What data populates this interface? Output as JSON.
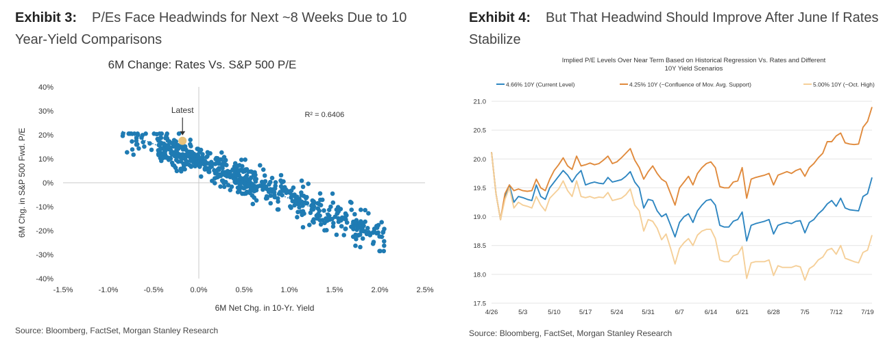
{
  "exhibit3": {
    "label": "Exhibit 3:",
    "title": "P/Es Face Headwinds for Next ~8 Weeks Due to 10 Year-Yield Comparisons",
    "source": "Source: Bloomberg, FactSet, Morgan Stanley Research"
  },
  "exhibit4": {
    "label": "Exhibit 4:",
    "title": "But That Headwind Should Improve After June If Rates Stabilize",
    "source": "Source: Bloomberg, FactSet, Morgan Stanley Research"
  },
  "chart_data": [
    {
      "type": "scatter",
      "title": "6M Change: Rates Vs. S&P 500 P/E",
      "xlabel": "6M Net Chg. in 10-Yr. Yield",
      "ylabel": "6M Chg. in S&P 500 Fwd. P/E",
      "xlim": [
        -1.5,
        2.5
      ],
      "ylim": [
        -40,
        40
      ],
      "x_ticks": [
        "-1.5%",
        "-1.0%",
        "-0.5%",
        "0.0%",
        "0.5%",
        "1.0%",
        "1.5%",
        "2.0%",
        "2.5%"
      ],
      "y_ticks": [
        "40%",
        "30%",
        "20%",
        "10%",
        "0%",
        "-10%",
        "-20%",
        "-30%",
        "-40%"
      ],
      "annotation": "Latest",
      "r_squared": "R² = 0.6406",
      "latest_point": {
        "x": -0.18,
        "y": 17.5
      },
      "trendline": {
        "x": [
          -0.85,
          2.05
        ],
        "y": [
          21.5,
          -22.5
        ]
      },
      "point_color": "#1f7bb3",
      "latest_color": "#e8c27a",
      "point_count": 620,
      "grid": false
    },
    {
      "type": "line",
      "title": "Implied P/E Levels Over Near Term Based on Historical Regression Vs. Rates and Different 10Y Yield Scenarios",
      "x_ticks": [
        "4/26",
        "5/3",
        "5/10",
        "5/17",
        "5/24",
        "5/31",
        "6/7",
        "6/14",
        "6/21",
        "6/28",
        "7/5",
        "7/12",
        "7/19"
      ],
      "ylim": [
        17.5,
        21.0
      ],
      "y_ticks": [
        "21.0",
        "20.5",
        "20.0",
        "19.5",
        "19.0",
        "18.5",
        "18.0",
        "17.5"
      ],
      "legend_position": "top",
      "grid": true,
      "series": [
        {
          "name": "4.66% 10Y (Current Level)",
          "color": "#2e86c1",
          "values": [
            20.12,
            19.4,
            18.95,
            19.35,
            19.55,
            19.25,
            19.35,
            19.33,
            19.3,
            19.28,
            19.55,
            19.35,
            19.3,
            19.5,
            19.6,
            19.7,
            19.8,
            19.72,
            19.6,
            19.72,
            19.8,
            19.55,
            19.58,
            19.6,
            19.58,
            19.57,
            19.68,
            19.6,
            19.62,
            19.64,
            19.7,
            19.78,
            19.6,
            19.5,
            19.15,
            19.3,
            19.28,
            19.1,
            19.0,
            19.05,
            18.85,
            18.65,
            18.9,
            19.0,
            19.05,
            18.9,
            19.1,
            19.2,
            19.28,
            19.3,
            19.2,
            18.85,
            18.82,
            18.82,
            18.92,
            18.95,
            19.08,
            18.58,
            18.85,
            18.88,
            18.9,
            18.92,
            18.95,
            18.7,
            18.85,
            18.88,
            18.9,
            18.88,
            18.92,
            18.93,
            18.72,
            18.9,
            18.95,
            19.05,
            19.12,
            19.22,
            19.28,
            19.18,
            19.32,
            19.15,
            19.12,
            19.11,
            19.1,
            19.35,
            19.4,
            19.68
          ]
        },
        {
          "name": "4.25% 10Y (~Confluence of Mov. Avg. Support)",
          "color": "#e08a3c",
          "values": [
            20.12,
            19.4,
            18.95,
            19.4,
            19.55,
            19.45,
            19.48,
            19.45,
            19.44,
            19.45,
            19.65,
            19.5,
            19.45,
            19.65,
            19.8,
            19.9,
            20.02,
            19.88,
            19.82,
            20.05,
            19.88,
            19.9,
            19.93,
            19.9,
            19.92,
            19.98,
            20.05,
            19.92,
            19.95,
            20.02,
            20.1,
            20.18,
            19.98,
            19.85,
            19.65,
            19.78,
            19.88,
            19.75,
            19.65,
            19.6,
            19.4,
            19.2,
            19.5,
            19.6,
            19.7,
            19.55,
            19.75,
            19.85,
            19.92,
            19.95,
            19.85,
            19.52,
            19.5,
            19.5,
            19.6,
            19.62,
            19.85,
            19.32,
            19.65,
            19.68,
            19.7,
            19.72,
            19.75,
            19.55,
            19.72,
            19.75,
            19.78,
            19.75,
            19.8,
            19.83,
            19.7,
            19.85,
            19.92,
            20.02,
            20.1,
            20.3,
            20.3,
            20.4,
            20.45,
            20.28,
            20.26,
            20.25,
            20.26,
            20.55,
            20.65,
            20.9
          ]
        },
        {
          "name": "5.00% 10Y (~Oct. High)",
          "color": "#f5cf98",
          "values": [
            20.12,
            19.4,
            18.95,
            19.3,
            19.5,
            19.15,
            19.25,
            19.2,
            19.18,
            19.15,
            19.35,
            19.2,
            19.1,
            19.32,
            19.4,
            19.48,
            19.62,
            19.45,
            19.35,
            19.62,
            19.35,
            19.33,
            19.35,
            19.32,
            19.34,
            19.33,
            19.42,
            19.28,
            19.3,
            19.32,
            19.38,
            19.48,
            19.2,
            19.1,
            18.75,
            18.95,
            18.92,
            18.8,
            18.6,
            18.7,
            18.45,
            18.18,
            18.45,
            18.55,
            18.62,
            18.5,
            18.68,
            18.75,
            18.78,
            18.78,
            18.62,
            18.25,
            18.22,
            18.22,
            18.32,
            18.35,
            18.48,
            17.93,
            18.2,
            18.22,
            18.22,
            18.22,
            18.25,
            17.98,
            18.15,
            18.12,
            18.12,
            18.12,
            18.15,
            18.13,
            17.9,
            18.1,
            18.15,
            18.25,
            18.3,
            18.42,
            18.45,
            18.35,
            18.5,
            18.28,
            18.25,
            18.22,
            18.2,
            18.38,
            18.42,
            18.68
          ]
        }
      ]
    }
  ]
}
